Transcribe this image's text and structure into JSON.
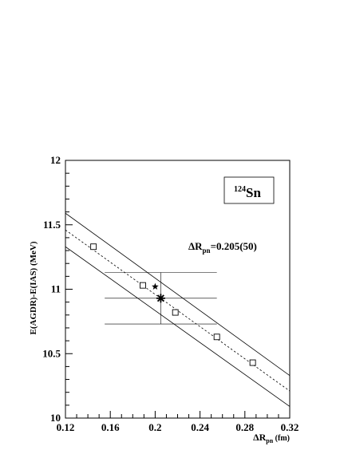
{
  "chart_data": {
    "type": "scatter",
    "title": "",
    "xlabel": "ΔR",
    "xlabel_sub": "pn",
    "xlabel_unit": " (fm)",
    "ylabel": "E(AGDR)-E(IAS) (MeV)",
    "xlim": [
      0.12,
      0.32
    ],
    "ylim": [
      10,
      12
    ],
    "x_ticks": [
      "0.12",
      "0.16",
      "0.2",
      "0.24",
      "0.28",
      "0.32"
    ],
    "y_ticks": [
      "10",
      "10.5",
      "11",
      "11.5",
      "12"
    ],
    "grid": false,
    "nucleus_label": {
      "mass": "124",
      "symbol": "Sn"
    },
    "annotation": {
      "prefix": "ΔR",
      "sub": "pn",
      "value": "=0.205(50)"
    },
    "points": [
      {
        "x": 0.145,
        "y": 11.33
      },
      {
        "x": 0.189,
        "y": 11.03
      },
      {
        "x": 0.218,
        "y": 10.82
      },
      {
        "x": 0.255,
        "y": 10.63
      },
      {
        "x": 0.287,
        "y": 10.43
      }
    ],
    "fit_line": {
      "x": [
        0.12,
        0.32
      ],
      "y": [
        11.46,
        10.21
      ],
      "style": "dashed"
    },
    "band_upper": {
      "x": [
        0.12,
        0.32
      ],
      "y": [
        11.59,
        10.33
      ]
    },
    "band_lower": {
      "x": [
        0.12,
        0.32
      ],
      "y": [
        11.33,
        10.09
      ]
    },
    "star_point": {
      "x": 0.2,
      "y": 11.02
    },
    "result_point": {
      "x": 0.205,
      "y": 10.93,
      "x_err": 0.05,
      "y_err": 0.2
    }
  }
}
